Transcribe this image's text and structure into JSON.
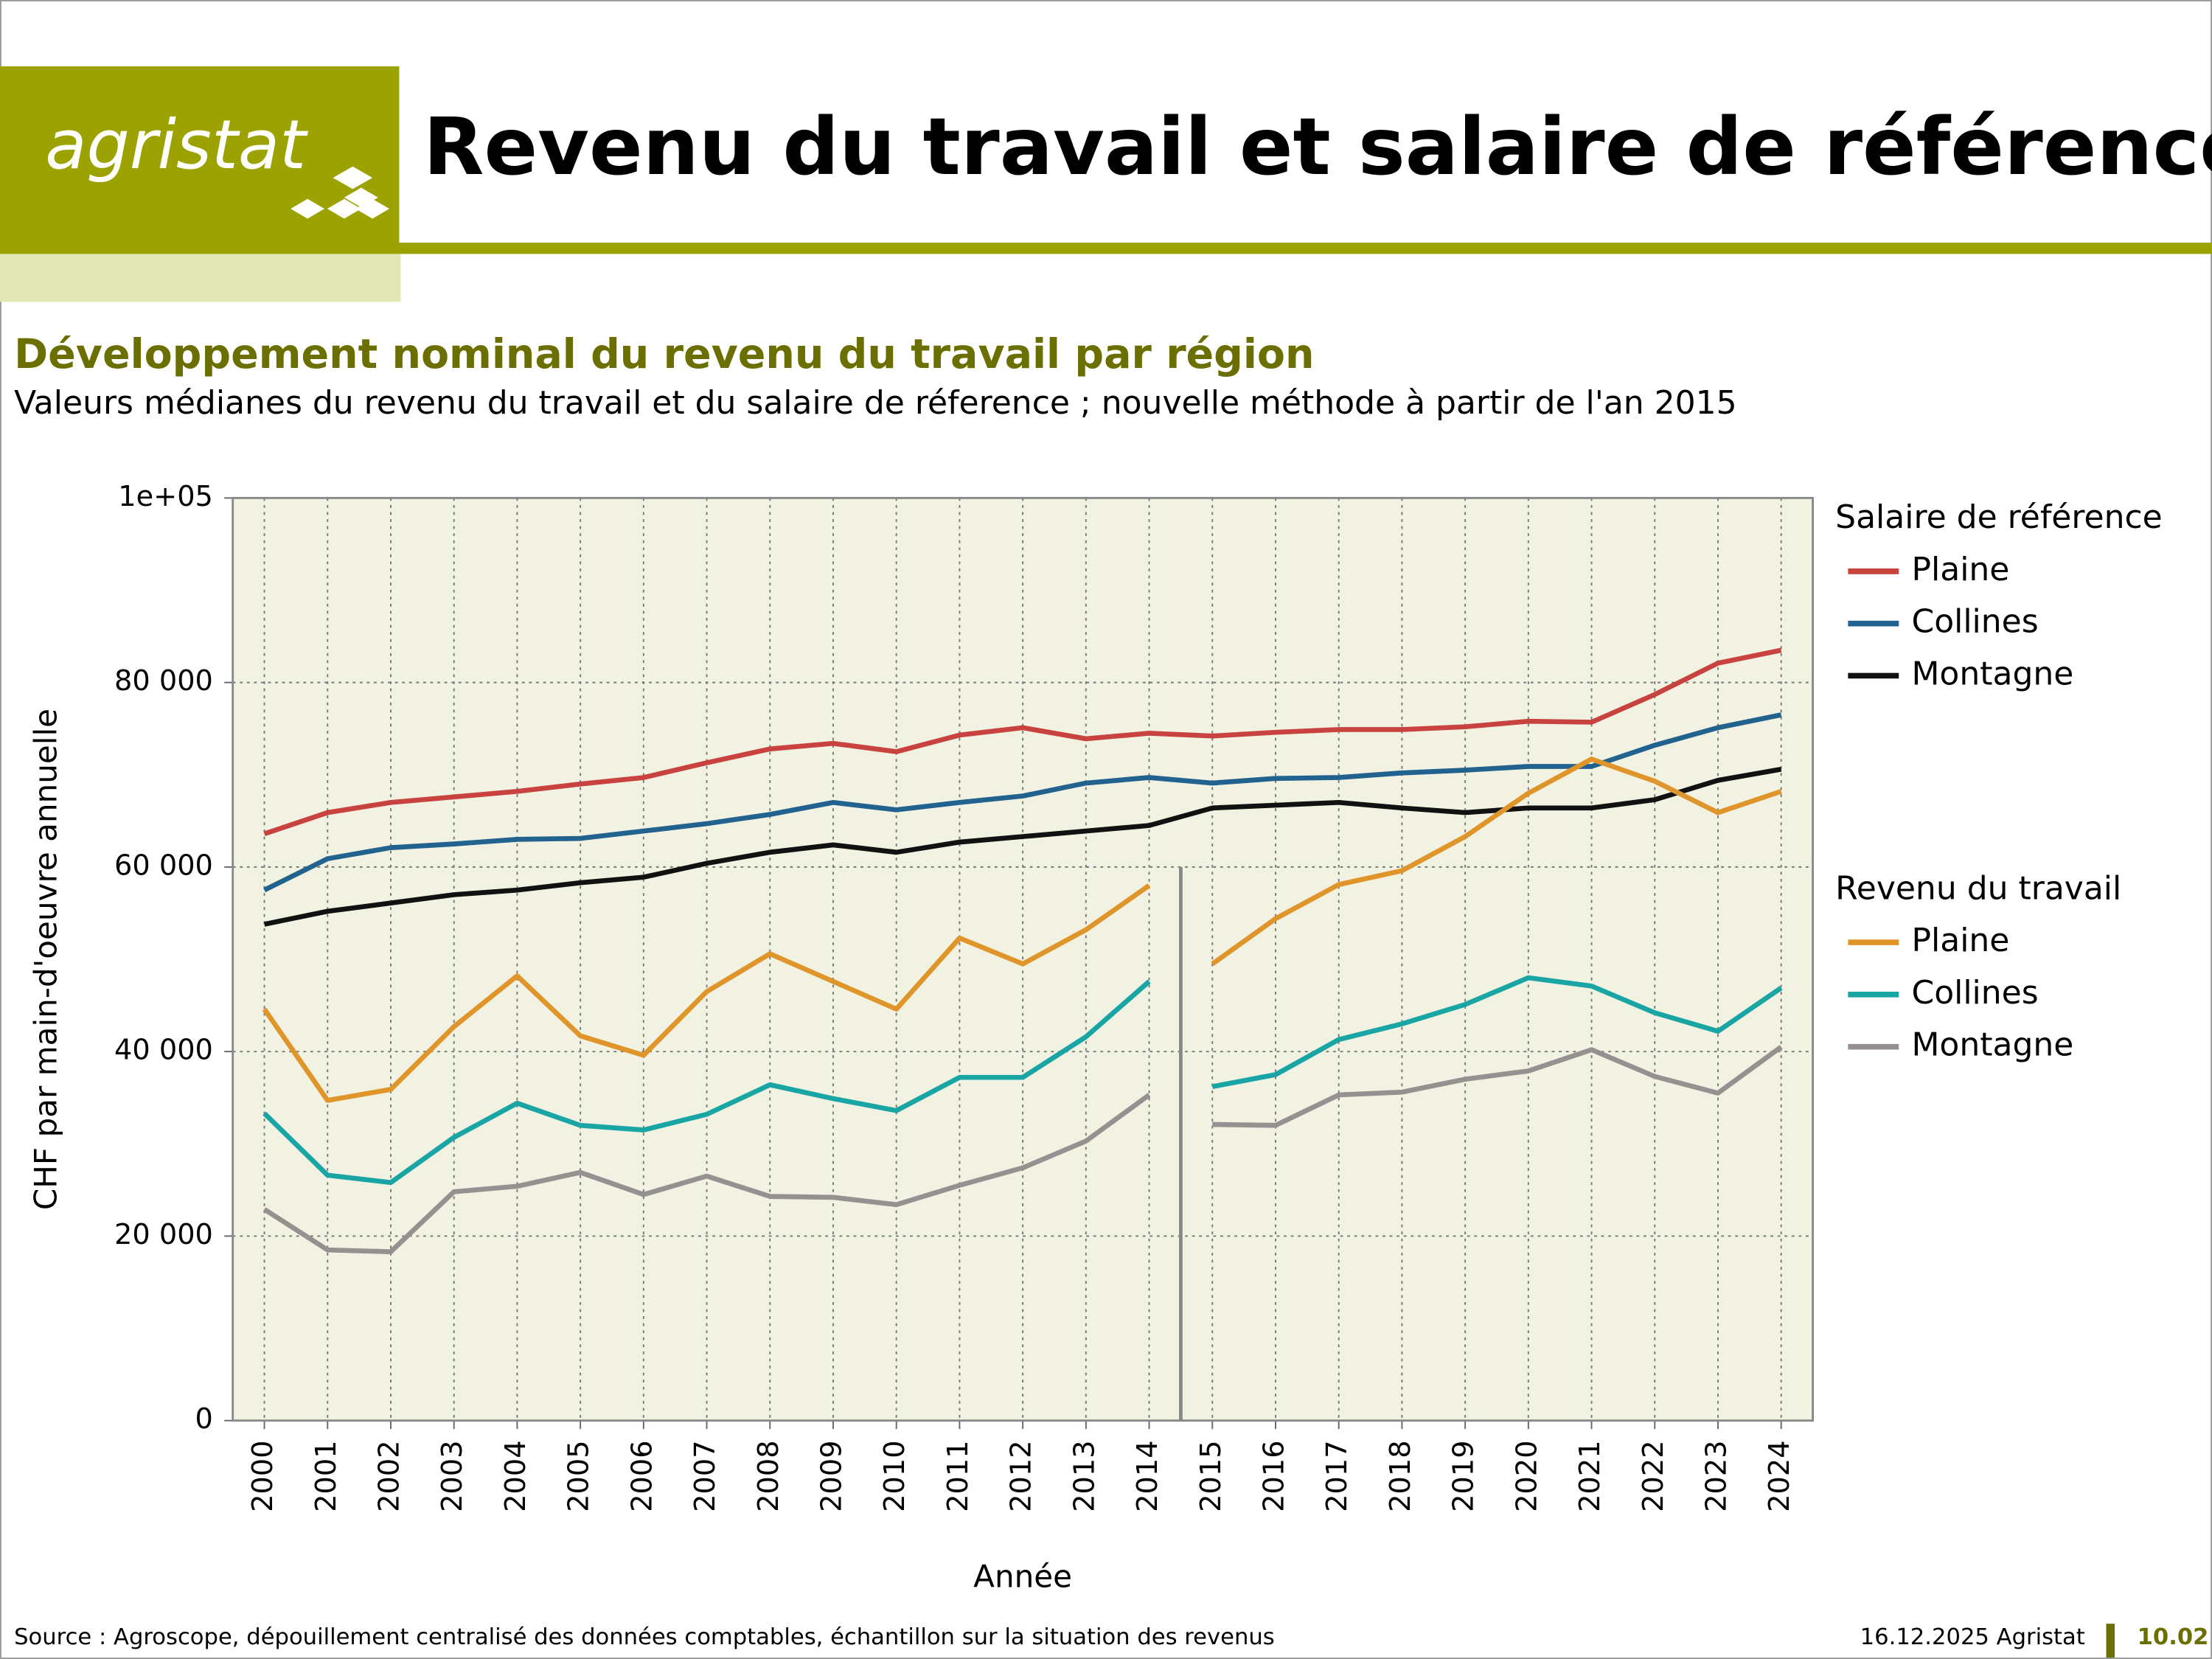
{
  "header": {
    "logo": "agristat",
    "title": "Revenu du travail et salaire de référence"
  },
  "chart_data": {
    "type": "line",
    "title": "Développement nominal du revenu du travail par région",
    "subtitle": "Valeurs médianes du revenu du travail et du salaire de réference ; nouvelle méthode à partir de l'an 2015",
    "x_label": "Année",
    "y_label": "CHF par main-d'oeuvre annuelle",
    "x": [
      2000,
      2001,
      2002,
      2003,
      2004,
      2005,
      2006,
      2007,
      2008,
      2009,
      2010,
      2011,
      2012,
      2013,
      2014,
      2015,
      2016,
      2017,
      2018,
      2019,
      2020,
      2021,
      2022,
      2023,
      2024
    ],
    "xlim": [
      1999.5,
      2024.5
    ],
    "xticks": [
      2000,
      2001,
      2002,
      2003,
      2004,
      2005,
      2006,
      2007,
      2008,
      2009,
      2010,
      2011,
      2012,
      2013,
      2014,
      2015,
      2016,
      2017,
      2018,
      2019,
      2020,
      2021,
      2022,
      2023,
      2024
    ],
    "ylim": [
      0,
      100000
    ],
    "yticks": [
      0,
      {
        "value": 20000,
        "label": "20 000"
      },
      {
        "value": 40000,
        "label": "40 000"
      },
      {
        "value": 60000,
        "label": "60 000"
      },
      {
        "value": 80000,
        "label": "80 000"
      },
      {
        "value": 100000,
        "label": "1e+05"
      }
    ],
    "grid": true,
    "vline": 2014.5,
    "series_groups": [
      {
        "name": "Salaire de référence",
        "series": [
          {
            "name": "Plaine",
            "color": "#c8433f",
            "values": [
              63600,
              65900,
              67000,
              67600,
              68200,
              69000,
              69700,
              71300,
              72800,
              73400,
              72500,
              74300,
              75100,
              73900,
              74500,
              74200,
              74600,
              74900,
              74900,
              75200,
              75800,
              75700,
              78700,
              82100,
              83500
            ]
          },
          {
            "name": "Collines",
            "color": "#22628f",
            "values": [
              57500,
              60900,
              62100,
              62500,
              63000,
              63100,
              63900,
              64700,
              65700,
              67000,
              66200,
              67000,
              67700,
              69100,
              69700,
              69100,
              69600,
              69700,
              70200,
              70500,
              70900,
              70900,
              73200,
              75100,
              76500
            ]
          },
          {
            "name": "Montagne",
            "color": "#111111",
            "values": [
              53800,
              55200,
              56100,
              57000,
              57500,
              58300,
              58900,
              60400,
              61600,
              62400,
              61600,
              62700,
              63300,
              63900,
              64500,
              66400,
              66700,
              67000,
              66400,
              65900,
              66400,
              66400,
              67300,
              69400,
              70600
            ]
          }
        ]
      },
      {
        "name": "Revenu du travail",
        "series": [
          {
            "name": "Plaine",
            "color": "#e0952a",
            "split_at_vline": true,
            "values": [
              44600,
              34700,
              35900,
              42700,
              48200,
              41700,
              39600,
              46500,
              50600,
              47600,
              44600,
              52300,
              49500,
              53200,
              58000,
              49500,
              54400,
              58100,
              59600,
              63300,
              68000,
              71700,
              69300,
              65900,
              68200
            ]
          },
          {
            "name": "Collines",
            "color": "#1aa5a5",
            "split_at_vline": true,
            "values": [
              33300,
              26600,
              25800,
              30700,
              34400,
              32000,
              31500,
              33200,
              36400,
              34900,
              33600,
              37200,
              37200,
              41600,
              47600,
              36200,
              37500,
              41300,
              43000,
              45100,
              48000,
              47100,
              44200,
              42200,
              46900
            ]
          },
          {
            "name": "Montagne",
            "color": "#969090",
            "split_at_vline": true,
            "values": [
              22900,
              18500,
              18300,
              24800,
              25400,
              26900,
              24500,
              26500,
              24300,
              24200,
              23400,
              25500,
              27400,
              30300,
              35300,
              32100,
              32000,
              35300,
              35600,
              37000,
              37900,
              40200,
              37300,
              35500,
              40500
            ]
          }
        ]
      }
    ]
  },
  "footer": {
    "source": "Source : Agroscope, dépouillement centralisé des données comptables, échantillon sur la situation des revenus",
    "date": "16.12.2025 Agristat",
    "page": "10.02"
  }
}
